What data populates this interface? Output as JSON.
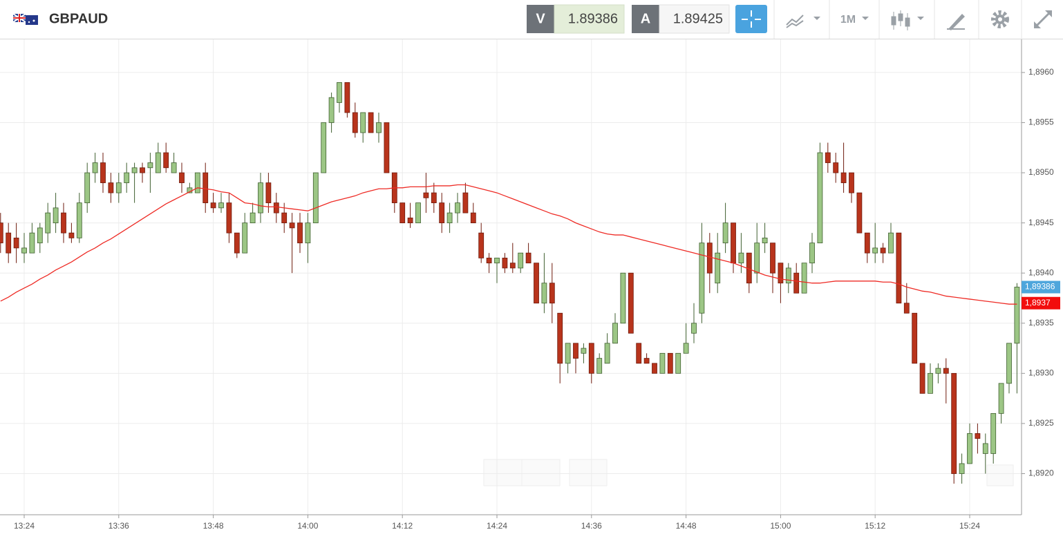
{
  "header": {
    "symbol": "GBPAUD",
    "bid_label": "V",
    "bid": "1.89386",
    "ask_label": "A",
    "ask": "1.89425",
    "timeframe": "1M"
  },
  "chart_data": {
    "type": "candlestick",
    "categories": [
      null,
      null,
      null,
      "13:24",
      null,
      null,
      null,
      null,
      null,
      null,
      null,
      null,
      null,
      null,
      null,
      "13:36",
      null,
      null,
      null,
      null,
      null,
      null,
      null,
      null,
      null,
      null,
      null,
      "13:48",
      null,
      null,
      null,
      null,
      null,
      null,
      null,
      null,
      null,
      null,
      null,
      "14:00",
      null,
      null,
      null,
      null,
      null,
      null,
      null,
      null,
      null,
      null,
      null,
      "14:12",
      null,
      null,
      null,
      null,
      null,
      null,
      null,
      null,
      null,
      null,
      null,
      "14:24",
      null,
      null,
      null,
      null,
      null,
      null,
      null,
      null,
      null,
      null,
      null,
      "14:36",
      null,
      null,
      null,
      null,
      null,
      null,
      null,
      null,
      null,
      null,
      null,
      "14:48",
      null,
      null,
      null,
      null,
      null,
      null,
      null,
      null,
      null,
      null,
      null,
      "15:00",
      null,
      null,
      null,
      null,
      null,
      null,
      null,
      null,
      null,
      null,
      null,
      "15:12",
      null,
      null,
      null,
      null,
      null,
      null,
      null,
      null,
      null,
      null,
      null,
      "15:24",
      null,
      null,
      null,
      null,
      null,
      null
    ],
    "open": [
      1.8945,
      1.8944,
      1.89435,
      1.8942,
      1.8942,
      1.8943,
      1.8944,
      1.8945,
      1.8946,
      1.8944,
      1.89435,
      1.8947,
      1.895,
      1.8951,
      1.8949,
      1.8948,
      1.8949,
      1.895,
      1.89505,
      1.89505,
      1.895,
      1.8952,
      1.895,
      1.895,
      1.8948,
      1.8948,
      1.895,
      1.8947,
      1.89465,
      1.8947,
      1.8944,
      1.8942,
      1.8945,
      1.8946,
      1.8949,
      1.8947,
      1.8946,
      1.8945,
      1.8945,
      1.8943,
      1.8945,
      1.895,
      1.8955,
      1.8957,
      1.8959,
      1.8956,
      1.8954,
      1.8956,
      1.8954,
      1.8955,
      1.895,
      1.8947,
      1.89455,
      1.8945,
      1.8948,
      1.8948,
      1.8947,
      1.8945,
      1.8946,
      1.8948,
      1.8946,
      1.8944,
      1.89415,
      1.8941,
      1.89415,
      1.8941,
      1.89405,
      1.8942,
      1.8941,
      1.8937,
      1.8939,
      1.8936,
      1.8931,
      1.8933,
      1.8932,
      1.8933,
      1.893,
      1.8931,
      1.8933,
      1.8935,
      1.894,
      1.8933,
      1.89315,
      1.8931,
      1.893,
      1.8932,
      1.893,
      1.8932,
      1.8934,
      1.8936,
      1.8943,
      1.8939,
      1.8943,
      1.8945,
      1.8941,
      1.8942,
      1.894,
      1.8943,
      1.8943,
      1.8941,
      1.8939,
      1.894,
      1.8938,
      1.8941,
      1.8943,
      1.8952,
      1.8951,
      1.895,
      1.895,
      1.8948,
      1.8944,
      1.8942,
      1.89425,
      1.8942,
      1.8944,
      1.8937,
      1.8936,
      1.8931,
      1.8928,
      1.893,
      1.89305,
      1.893,
      1.892,
      1.8921,
      1.8924,
      1.8922,
      1.8922,
      1.8926,
      1.8929,
      1.8933
    ],
    "high": [
      1.8946,
      1.8945,
      1.8945,
      1.8944,
      1.8945,
      1.8945,
      1.8947,
      1.8948,
      1.8947,
      1.8945,
      1.8948,
      1.8951,
      1.8952,
      1.8952,
      1.895,
      1.895,
      1.8951,
      1.8951,
      1.8951,
      1.8952,
      1.8953,
      1.8953,
      1.8952,
      1.8951,
      1.8949,
      1.895,
      1.8951,
      1.8948,
      1.8948,
      1.8948,
      1.8944,
      1.8946,
      1.8947,
      1.895,
      1.895,
      1.8948,
      1.8947,
      1.8946,
      1.8946,
      1.8946,
      1.895,
      1.8955,
      1.8958,
      1.8959,
      1.8959,
      1.8957,
      1.8956,
      1.8956,
      1.8956,
      1.8955,
      1.895,
      1.8947,
      1.8947,
      1.8947,
      1.895,
      1.8949,
      1.8948,
      1.8947,
      1.8948,
      1.8949,
      1.8947,
      1.8945,
      1.8942,
      1.89415,
      1.8942,
      1.8943,
      1.8942,
      1.8943,
      1.8941,
      1.8942,
      1.8941,
      1.8936,
      1.8933,
      1.8933,
      1.8933,
      1.8933,
      1.8932,
      1.8934,
      1.8936,
      1.894,
      1.894,
      1.8933,
      1.8932,
      1.8931,
      1.8932,
      1.8932,
      1.8932,
      1.8935,
      1.8937,
      1.8945,
      1.8944,
      1.8944,
      1.8947,
      1.8945,
      1.8944,
      1.8942,
      1.8945,
      1.8945,
      1.8943,
      1.8941,
      1.8941,
      1.8941,
      1.8941,
      1.8944,
      1.8953,
      1.8953,
      1.8952,
      1.8953,
      1.895,
      1.8948,
      1.8944,
      1.8945,
      1.8943,
      1.8945,
      1.8944,
      1.8939,
      1.8936,
      1.8931,
      1.8931,
      1.8931,
      1.89315,
      1.893,
      1.8922,
      1.8925,
      1.8925,
      1.8924,
      1.8926,
      1.8929,
      1.8933,
      1.8939
    ],
    "low": [
      1.8942,
      1.8941,
      1.8941,
      1.8941,
      1.8942,
      1.8942,
      1.8943,
      1.8944,
      1.8943,
      1.8943,
      1.8943,
      1.8946,
      1.8949,
      1.8948,
      1.8947,
      1.8947,
      1.8948,
      1.8947,
      1.8949,
      1.8948,
      1.895,
      1.895,
      1.895,
      1.8948,
      1.8948,
      1.8948,
      1.8946,
      1.8946,
      1.8946,
      1.8943,
      1.89415,
      1.8942,
      1.8945,
      1.8945,
      1.8946,
      1.8945,
      1.8944,
      1.894,
      1.8942,
      1.8941,
      1.8945,
      1.895,
      1.8954,
      1.8956,
      1.89555,
      1.89535,
      1.8953,
      1.8954,
      1.8953,
      1.895,
      1.8946,
      1.8945,
      1.89445,
      1.8945,
      1.8946,
      1.8946,
      1.8944,
      1.8944,
      1.8945,
      1.8946,
      1.8945,
      1.8941,
      1.894,
      1.8939,
      1.894,
      1.894,
      1.894,
      1.8941,
      1.8937,
      1.8936,
      1.8935,
      1.8929,
      1.893,
      1.893,
      1.8931,
      1.8929,
      1.893,
      1.8931,
      1.8933,
      1.8935,
      1.8934,
      1.8931,
      1.8931,
      1.893,
      1.893,
      1.893,
      1.893,
      1.8932,
      1.8933,
      1.8935,
      1.8938,
      1.8938,
      1.8942,
      1.894,
      1.894,
      1.8938,
      1.8939,
      1.8942,
      1.8938,
      1.8937,
      1.8938,
      1.8938,
      1.8938,
      1.894,
      1.8943,
      1.895,
      1.8949,
      1.8948,
      1.8947,
      1.8944,
      1.8941,
      1.8941,
      1.8941,
      1.8942,
      1.8937,
      1.8936,
      1.8931,
      1.8928,
      1.8928,
      1.8929,
      1.8927,
      1.8919,
      1.8919,
      1.8921,
      1.8922,
      1.892,
      1.8921,
      1.8925,
      1.8928,
      1.8928
    ],
    "close": [
      1.8943,
      1.8942,
      1.89425,
      1.89425,
      1.8944,
      1.89445,
      1.8946,
      1.89465,
      1.8944,
      1.89435,
      1.8947,
      1.895,
      1.8951,
      1.8949,
      1.8948,
      1.8949,
      1.895,
      1.89505,
      1.895,
      1.8951,
      1.8952,
      1.89505,
      1.8951,
      1.8949,
      1.89485,
      1.895,
      1.8947,
      1.89465,
      1.8947,
      1.8944,
      1.8942,
      1.8945,
      1.8946,
      1.8949,
      1.8947,
      1.8946,
      1.8945,
      1.89445,
      1.8943,
      1.8945,
      1.895,
      1.8955,
      1.89575,
      1.8959,
      1.8956,
      1.8954,
      1.8956,
      1.8954,
      1.8955,
      1.895,
      1.8947,
      1.8945,
      1.8945,
      1.8947,
      1.89475,
      1.8947,
      1.8945,
      1.8946,
      1.8947,
      1.8946,
      1.8945,
      1.89415,
      1.8941,
      1.89415,
      1.89405,
      1.89405,
      1.8942,
      1.8941,
      1.8937,
      1.8939,
      1.8937,
      1.8931,
      1.8933,
      1.89315,
      1.89325,
      1.893,
      1.89315,
      1.8933,
      1.8935,
      1.894,
      1.8934,
      1.8931,
      1.8931,
      1.893,
      1.8932,
      1.893,
      1.8932,
      1.8933,
      1.8935,
      1.8943,
      1.894,
      1.8942,
      1.8945,
      1.8941,
      1.8942,
      1.8939,
      1.8943,
      1.89435,
      1.894,
      1.8939,
      1.89405,
      1.8938,
      1.8941,
      1.8943,
      1.8952,
      1.8951,
      1.895,
      1.8949,
      1.8948,
      1.8944,
      1.8942,
      1.89425,
      1.8942,
      1.8944,
      1.8937,
      1.8936,
      1.8931,
      1.8928,
      1.893,
      1.89305,
      1.893,
      1.892,
      1.8921,
      1.8924,
      1.89235,
      1.8923,
      1.8926,
      1.8929,
      1.8933,
      1.89386
    ],
    "ma_values": [
      1.89372,
      1.89376,
      1.89381,
      1.89385,
      1.89389,
      1.89394,
      1.89398,
      1.89403,
      1.89407,
      1.89411,
      1.89416,
      1.89421,
      1.89425,
      1.8943,
      1.89434,
      1.89439,
      1.89444,
      1.89449,
      1.89454,
      1.89459,
      1.89464,
      1.89469,
      1.89473,
      1.89477,
      1.89481,
      1.89485,
      1.89484,
      1.89483,
      1.89481,
      1.8948,
      1.89475,
      1.8947,
      1.89469,
      1.89467,
      1.89466,
      1.89466,
      1.89465,
      1.89464,
      1.89463,
      1.89462,
      1.89465,
      1.89468,
      1.89471,
      1.89473,
      1.89475,
      1.89477,
      1.8948,
      1.89482,
      1.89484,
      1.89484,
      1.89485,
      1.89485,
      1.89486,
      1.89486,
      1.89486,
      1.89487,
      1.89487,
      1.89487,
      1.89488,
      1.89488,
      1.89486,
      1.89484,
      1.89482,
      1.8948,
      1.89477,
      1.89474,
      1.89471,
      1.89468,
      1.89465,
      1.89462,
      1.89459,
      1.89457,
      1.89454,
      1.8945,
      1.89447,
      1.89444,
      1.89441,
      1.89439,
      1.89438,
      1.89438,
      1.89436,
      1.89434,
      1.89432,
      1.8943,
      1.89428,
      1.89426,
      1.89424,
      1.89422,
      1.8942,
      1.89418,
      1.89416,
      1.89414,
      1.89412,
      1.8941,
      1.89407,
      1.89404,
      1.89401,
      1.89398,
      1.89396,
      1.89394,
      1.89393,
      1.89392,
      1.89391,
      1.8939,
      1.8939,
      1.89391,
      1.89392,
      1.89392,
      1.89392,
      1.89392,
      1.89392,
      1.89392,
      1.89391,
      1.89391,
      1.89389,
      1.89386,
      1.89384,
      1.89382,
      1.89381,
      1.89379,
      1.89377,
      1.89376,
      1.89375,
      1.89374,
      1.89373,
      1.89372,
      1.89371,
      1.8937,
      1.89369,
      1.89369
    ],
    "ma_color": "#ee2a24",
    "up_color": "#9cc685",
    "up_edge": "#3f5f2f",
    "down_color": "#b8341c",
    "down_edge": "#6e1a0c",
    "ylim": [
      1.89159,
      1.89633
    ],
    "yticks": [
      {
        "value": 1.892,
        "label": "1,8920"
      },
      {
        "value": 1.8925,
        "label": "1,8925"
      },
      {
        "value": 1.893,
        "label": "1,8930"
      },
      {
        "value": 1.8935,
        "label": "1,8935"
      },
      {
        "value": 1.894,
        "label": "1,8940"
      },
      {
        "value": 1.8945,
        "label": "1,8945"
      },
      {
        "value": 1.895,
        "label": "1,8950"
      },
      {
        "value": 1.8955,
        "label": "1,8955"
      },
      {
        "value": 1.896,
        "label": "1,8960"
      }
    ],
    "price_labels": [
      {
        "value": 1.89386,
        "label": "1,89386",
        "color": "#4ea6dc"
      },
      {
        "value": 1.8937,
        "label": "1,8937",
        "color": "#f20d0d"
      }
    ],
    "grid": true
  }
}
